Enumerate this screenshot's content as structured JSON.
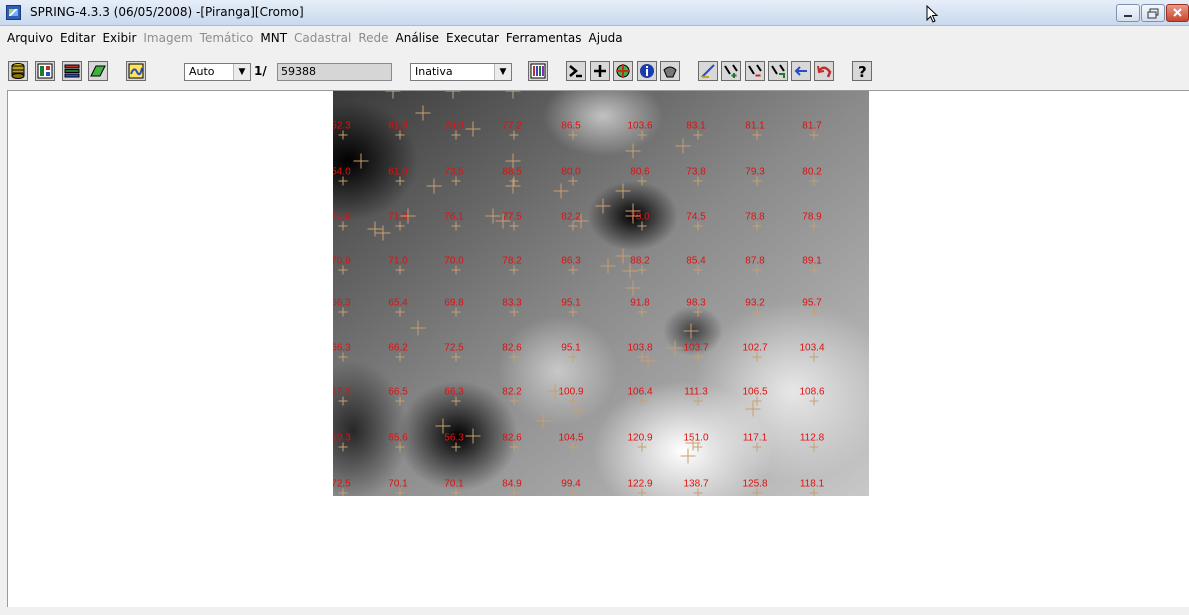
{
  "window": {
    "title": "SPRING-4.3.3 (06/05/2008) -[Piranga][Cromo]"
  },
  "menubar": {
    "items": [
      {
        "label": "Arquivo",
        "enabled": true
      },
      {
        "label": "Editar",
        "enabled": true
      },
      {
        "label": "Exibir",
        "enabled": true
      },
      {
        "label": "Imagem",
        "enabled": false
      },
      {
        "label": "Temático",
        "enabled": false
      },
      {
        "label": "MNT",
        "enabled": true
      },
      {
        "label": "Cadastral",
        "enabled": false
      },
      {
        "label": "Rede",
        "enabled": false
      },
      {
        "label": "Análise",
        "enabled": true
      },
      {
        "label": "Executar",
        "enabled": true
      },
      {
        "label": "Ferramentas",
        "enabled": true
      },
      {
        "label": "Ajuda",
        "enabled": true
      }
    ]
  },
  "toolbar": {
    "zoom_mode": "Auto",
    "scale_prefix": "1/",
    "scale_value": "59388",
    "cursor_mode": "Inativa",
    "left_icons": [
      "database-icon",
      "panel-icon",
      "layers-icon",
      "draw-icon",
      "visual-icon"
    ],
    "right_icons": [
      "palette-icon",
      "zoom-extent-icon",
      "cursor-cross-icon",
      "pan-icon",
      "info-icon",
      "toggle-icon",
      "edit-icon",
      "zoom-in-icon",
      "zoom-out-icon",
      "zoom-window-icon",
      "previous-icon",
      "undo-icon",
      "help-icon"
    ]
  },
  "map": {
    "grid_labels": [
      [
        "52.3",
        "61.6",
        "70.0",
        "77.2",
        "86.5",
        "103.6",
        "83.1",
        "81.1",
        "81.7"
      ],
      [
        "54.0",
        "61.0",
        "73.5",
        "88.5",
        "80.0",
        "80.6",
        "73.8",
        "79.3",
        "80.2"
      ],
      [
        "70.9",
        "71.8",
        "76.1",
        "77.5",
        "82.2",
        "78.0",
        "74.5",
        "78.8",
        "78.9"
      ],
      [
        "70.9",
        "71.0",
        "70.0",
        "78.2",
        "86.3",
        "88.2",
        "85.4",
        "87.8",
        "89.1"
      ],
      [
        "66.3",
        "65.4",
        "69.8",
        "83.3",
        "95.1",
        "91.8",
        "98.3",
        "93.2",
        "95.7"
      ],
      [
        "66.3",
        "66.2",
        "72.5",
        "82.6",
        "95.1",
        "103.8",
        "103.7",
        "102.7",
        "103.4"
      ],
      [
        "67.3",
        "66.5",
        "66.3",
        "82.2",
        "100.9",
        "106.4",
        "111.3",
        "106.5",
        "108.6"
      ],
      [
        "69.3",
        "65.6",
        "56.3",
        "82.6",
        "104.5",
        "120.9",
        "151.0",
        "117.1",
        "112.8"
      ],
      [
        "72.5",
        "70.1",
        "70.1",
        "84.9",
        "99.4",
        "122.9",
        "138.7",
        "125.8",
        "118.1"
      ]
    ]
  }
}
